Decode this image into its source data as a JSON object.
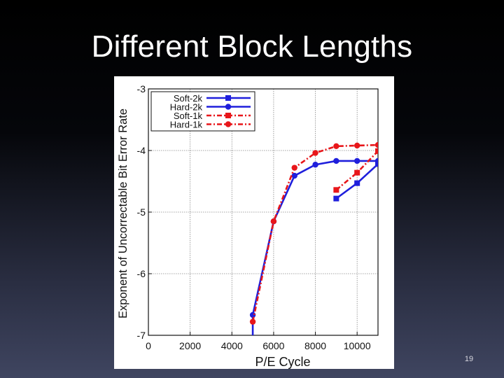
{
  "slide": {
    "title": "Different Block Lengths",
    "page_number": "19"
  },
  "chart_data": {
    "type": "line",
    "xlabel": "P/E Cycle",
    "ylabel": "Exponent of Uncorrectable Bit Error Rate",
    "xlim": [
      0,
      11000
    ],
    "ylim": [
      -7,
      -3
    ],
    "xticks": [
      0,
      2000,
      4000,
      6000,
      8000,
      10000
    ],
    "yticks": [
      -3,
      -4,
      -5,
      -6,
      -7
    ],
    "grid": true,
    "legend_position": "top-left",
    "series": [
      {
        "name": "Soft-2k",
        "color": "#1f1fdc",
        "dash": "solid",
        "marker": "square",
        "points": [
          [
            9000,
            -4.78
          ],
          [
            10000,
            -4.53
          ],
          [
            11000,
            -4.22
          ]
        ]
      },
      {
        "name": "Hard-2k",
        "color": "#1f1fdc",
        "dash": "solid",
        "marker": "circle",
        "points": [
          [
            5000,
            -7.0
          ],
          [
            5000,
            -6.67
          ],
          [
            6000,
            -5.15
          ],
          [
            7000,
            -4.41
          ],
          [
            8000,
            -4.23
          ],
          [
            9000,
            -4.17
          ],
          [
            10000,
            -4.17
          ],
          [
            11000,
            -4.17
          ]
        ]
      },
      {
        "name": "Soft-1k",
        "color": "#e8161a",
        "dash": "dashdot",
        "marker": "square",
        "points": [
          [
            9000,
            -4.64
          ],
          [
            10000,
            -4.36
          ],
          [
            11000,
            -4.01
          ]
        ]
      },
      {
        "name": "Hard-1k",
        "color": "#e8161a",
        "dash": "dashdot",
        "marker": "circle",
        "points": [
          [
            5000,
            -6.78
          ],
          [
            6000,
            -5.15
          ],
          [
            7000,
            -4.28
          ],
          [
            8000,
            -4.04
          ],
          [
            9000,
            -3.93
          ],
          [
            10000,
            -3.92
          ],
          [
            11000,
            -3.91
          ]
        ]
      }
    ]
  }
}
